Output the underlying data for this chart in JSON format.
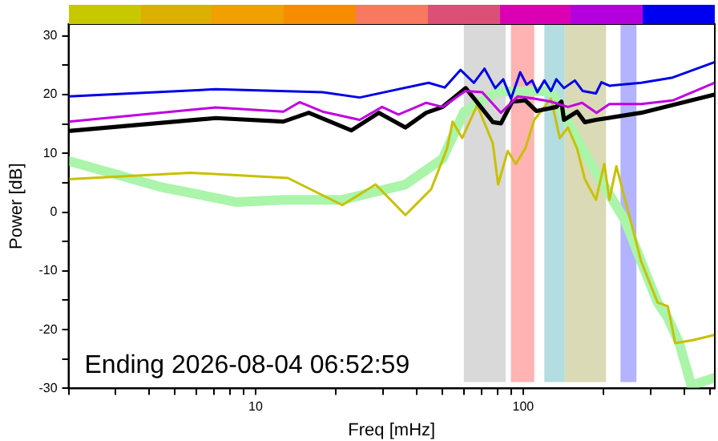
{
  "chart_data": {
    "type": "line",
    "xlabel": "Freq [mHz]",
    "ylabel": "Power [dB]",
    "log": "x",
    "grid": false,
    "legend": false,
    "marker": "none",
    "line_style": "solid",
    "xlim": [
      2,
      520
    ],
    "ylim": [
      -30,
      32
    ],
    "xticks": [
      {
        "value": 2,
        "label": null
      },
      {
        "value": 3,
        "label": null
      },
      {
        "value": 4,
        "label": null
      },
      {
        "value": 5,
        "label": null
      },
      {
        "value": 6,
        "label": null
      },
      {
        "value": 7,
        "label": null
      },
      {
        "value": 8,
        "label": null
      },
      {
        "value": 9,
        "label": null
      },
      10,
      {
        "value": 20,
        "label": null
      },
      {
        "value": 30,
        "label": null
      },
      {
        "value": 40,
        "label": null
      },
      {
        "value": 50,
        "label": null
      },
      {
        "value": 60,
        "label": null
      },
      {
        "value": 70,
        "label": null
      },
      {
        "value": 80,
        "label": null
      },
      {
        "value": 90,
        "label": null
      },
      100,
      {
        "value": 200,
        "label": null
      },
      {
        "value": 300,
        "label": null
      },
      {
        "value": 400,
        "label": null
      },
      {
        "value": 500,
        "label": null
      }
    ],
    "yticks": [
      -30,
      {
        "value": -25,
        "label": null
      },
      -20,
      {
        "value": -15,
        "label": null
      },
      -10,
      {
        "value": -5,
        "label": null
      },
      0,
      {
        "value": 5,
        "label": null
      },
      10,
      {
        "value": 15,
        "label": null
      },
      20,
      {
        "value": 25,
        "label": null
      },
      30
    ],
    "bands": [
      {
        "axis": "x",
        "from": 60,
        "to": 86,
        "color": "#d9d9d9"
      },
      {
        "axis": "x",
        "from": 90,
        "to": 110,
        "color": "#ffb3b3"
      },
      {
        "axis": "x",
        "from": 120,
        "to": 143,
        "color": "#b3dde0"
      },
      {
        "axis": "x",
        "from": 143,
        "to": 204,
        "color": "#dadab6"
      },
      {
        "axis": "x",
        "from": 231,
        "to": 265,
        "color": "#b3b3ff"
      }
    ],
    "annotations": [
      "Ending 2026-08-04 06:52:59"
    ],
    "series": [
      {
        "color": "#0000e6",
        "x": [
          2,
          7.1,
          17.8,
          24.5,
          44.3,
          50.9,
          58.3,
          65.4,
          71.7,
          78.6,
          84.2,
          90.1,
          97.5,
          103,
          108,
          113,
          120,
          127,
          133,
          142,
          156,
          167,
          187,
          196,
          210,
          276,
          362,
          518
        ],
        "values": [
          19.7,
          20.9,
          20.4,
          19.5,
          22.0,
          21.2,
          24.2,
          22.0,
          24.4,
          21.1,
          22.6,
          19.3,
          23.8,
          21.7,
          22.4,
          20.4,
          22.4,
          20.6,
          22.6,
          21.1,
          22.4,
          20.6,
          20.2,
          22.1,
          21.5,
          22.0,
          22.9,
          25.5
        ]
      },
      {
        "color": "#c000e0",
        "x": [
          2,
          7.1,
          12.7,
          14.6,
          17.8,
          24.5,
          29.7,
          34.2,
          43.4,
          50,
          60.8,
          70.3,
          82.6,
          95.5,
          110,
          127,
          147,
          166,
          188,
          210,
          276,
          362,
          518
        ],
        "values": [
          15.4,
          17.8,
          17.1,
          18.7,
          17.1,
          15.7,
          17.9,
          16.6,
          18.6,
          17.9,
          20.6,
          20.4,
          16.9,
          19.7,
          19.3,
          18.8,
          17.9,
          18.6,
          16.9,
          18.4,
          18.4,
          19.0,
          22.0
        ]
      },
      {
        "color": "#000000",
        "x": [
          2,
          7.1,
          12.7,
          15.8,
          22.8,
          28.9,
          36.3,
          43.4,
          50,
          61,
          77.1,
          82.6,
          91,
          102,
          112,
          133,
          139,
          142,
          159,
          170,
          187,
          276,
          518
        ],
        "values": [
          13.8,
          16.0,
          15.4,
          16.9,
          13.9,
          16.9,
          14.4,
          16.9,
          17.9,
          21.1,
          15.3,
          15.1,
          18.8,
          19.0,
          17.2,
          17.9,
          18.8,
          15.7,
          17.1,
          15.3,
          15.7,
          16.9,
          20.0
        ]
      },
      {
        "color": "#c8c000",
        "x": [
          2,
          5.7,
          13.2,
          21.1,
          28.1,
          36.3,
          45.3,
          52,
          54.5,
          59.2,
          67.3,
          77,
          80.6,
          87.5,
          93.9,
          102,
          110,
          127,
          137,
          147,
          159,
          170,
          187,
          201,
          210,
          223,
          276,
          318,
          347,
          370,
          430,
          518
        ],
        "values": [
          5.6,
          6.7,
          5.8,
          1.2,
          4.7,
          -0.5,
          3.9,
          10.9,
          15.4,
          12.6,
          18.2,
          11.7,
          4.7,
          10.4,
          8.2,
          10.9,
          15.7,
          19.3,
          12.6,
          14.4,
          10.8,
          5.6,
          2.1,
          8.2,
          2.1,
          7.8,
          -8.4,
          -15.4,
          -16.0,
          -22.3,
          -21.8,
          -20.9
        ]
      },
      {
        "color": "#aaf5aa",
        "x": [
          2,
          4.4,
          8.5,
          12.7,
          21.1,
          36.3,
          50,
          60,
          80,
          127,
          170,
          240,
          276,
          318,
          347,
          383,
          425,
          518
        ],
        "values": [
          8.7,
          4.3,
          1.7,
          2.1,
          2.1,
          4.7,
          9.1,
          17,
          20.5,
          20.6,
          10.0,
          -1.4,
          -8.4,
          -15.4,
          -18,
          -22.3,
          -29.5,
          -28.2
        ]
      }
    ]
  }
}
